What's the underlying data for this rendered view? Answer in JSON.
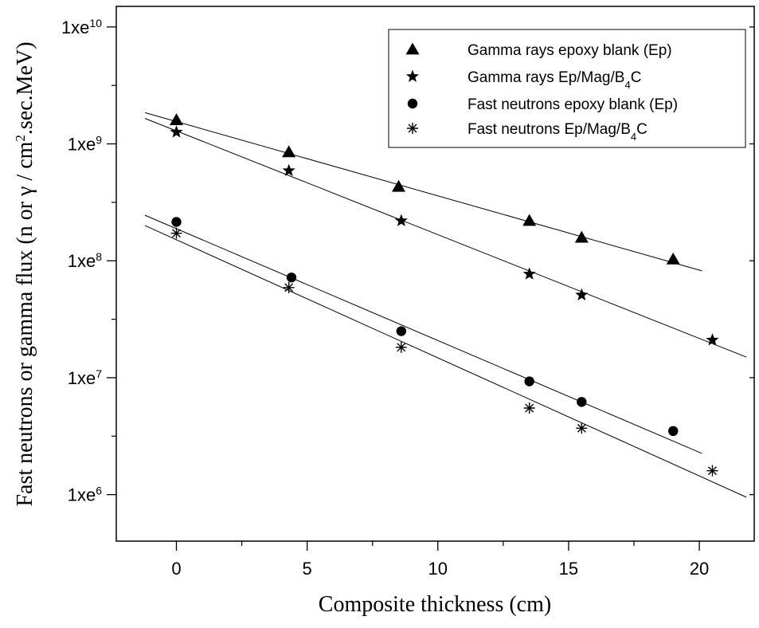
{
  "chart_data": {
    "type": "scatter",
    "title": "",
    "xlabel": "Composite thickness (cm)",
    "ylabel": "Fast neutrons or gamma flux (n or γ / cm².sec.MeV)",
    "ylabel_parts": {
      "before": "Fast neutrons or gamma flux (n or γ / cm",
      "sup": "2",
      "after": ".sec.MeV)"
    },
    "xlim": [
      -2.3,
      22.1
    ],
    "ylim": [
      400000,
      15000000000
    ],
    "y_scale": "log",
    "x_ticks": [
      0,
      5,
      10,
      15,
      20
    ],
    "x_tick_labels": [
      "0",
      "5",
      "10",
      "15",
      "20"
    ],
    "y_ticks": [
      1000000,
      10000000,
      100000000,
      1000000000,
      10000000000
    ],
    "y_tick_labels": [
      {
        "base": "1xe",
        "exp": "6"
      },
      {
        "base": "1xe",
        "exp": "7"
      },
      {
        "base": "1xe",
        "exp": "8"
      },
      {
        "base": "1xe",
        "exp": "9"
      },
      {
        "base": "1xe",
        "exp": "10"
      }
    ],
    "legend_position": "top-right",
    "series": [
      {
        "name": "Gamma rays epoxy blank (Ep)",
        "name_parts": [
          {
            "t": "Gamma rays epoxy blank (Ep)"
          }
        ],
        "marker": "triangle",
        "x": [
          0,
          4.3,
          8.5,
          13.5,
          15.5,
          19.0
        ],
        "y": [
          1600000000,
          850000000,
          430000000,
          220000000,
          158000000,
          103000000
        ],
        "fit": {
          "x": [
            -1.2,
            20.1
          ],
          "y": [
            1850000000,
            82000000
          ]
        }
      },
      {
        "name": "Gamma rays Ep/Mag/B4C",
        "name_parts": [
          {
            "t": "Gamma rays Ep/Mag/B"
          },
          {
            "t": "4",
            "sub": true
          },
          {
            "t": "C"
          }
        ],
        "marker": "star",
        "x": [
          0,
          4.3,
          8.6,
          13.5,
          15.5,
          20.5
        ],
        "y": [
          1260000000,
          590000000,
          220000000,
          77000000,
          51000000,
          21000000
        ],
        "fit": {
          "x": [
            -1.2,
            21.8
          ],
          "y": [
            1650000000,
            15000000
          ]
        }
      },
      {
        "name": "Fast neutrons epoxy blank (Ep)",
        "name_parts": [
          {
            "t": "Fast neutrons epoxy blank (Ep)"
          }
        ],
        "marker": "circle",
        "x": [
          0,
          4.4,
          8.6,
          13.5,
          15.5,
          19.0
        ],
        "y": [
          215000000,
          72000000,
          25000000,
          9300000,
          6200000,
          3500000
        ],
        "fit": {
          "x": [
            -1.2,
            20.1
          ],
          "y": [
            245000000,
            2250000
          ]
        }
      },
      {
        "name": "Fast neutrons Ep/Mag/B4C",
        "name_parts": [
          {
            "t": "Fast neutrons Ep/Mag/B"
          },
          {
            "t": "4",
            "sub": true
          },
          {
            "t": "C"
          }
        ],
        "marker": "asterisk",
        "x": [
          0,
          4.3,
          8.6,
          13.5,
          15.5,
          20.5
        ],
        "y": [
          172000000,
          59000000,
          18200000,
          5500000,
          3700000,
          1600000
        ],
        "fit": {
          "x": [
            -1.2,
            21.8
          ],
          "y": [
            200000000,
            950000
          ]
        }
      }
    ]
  }
}
